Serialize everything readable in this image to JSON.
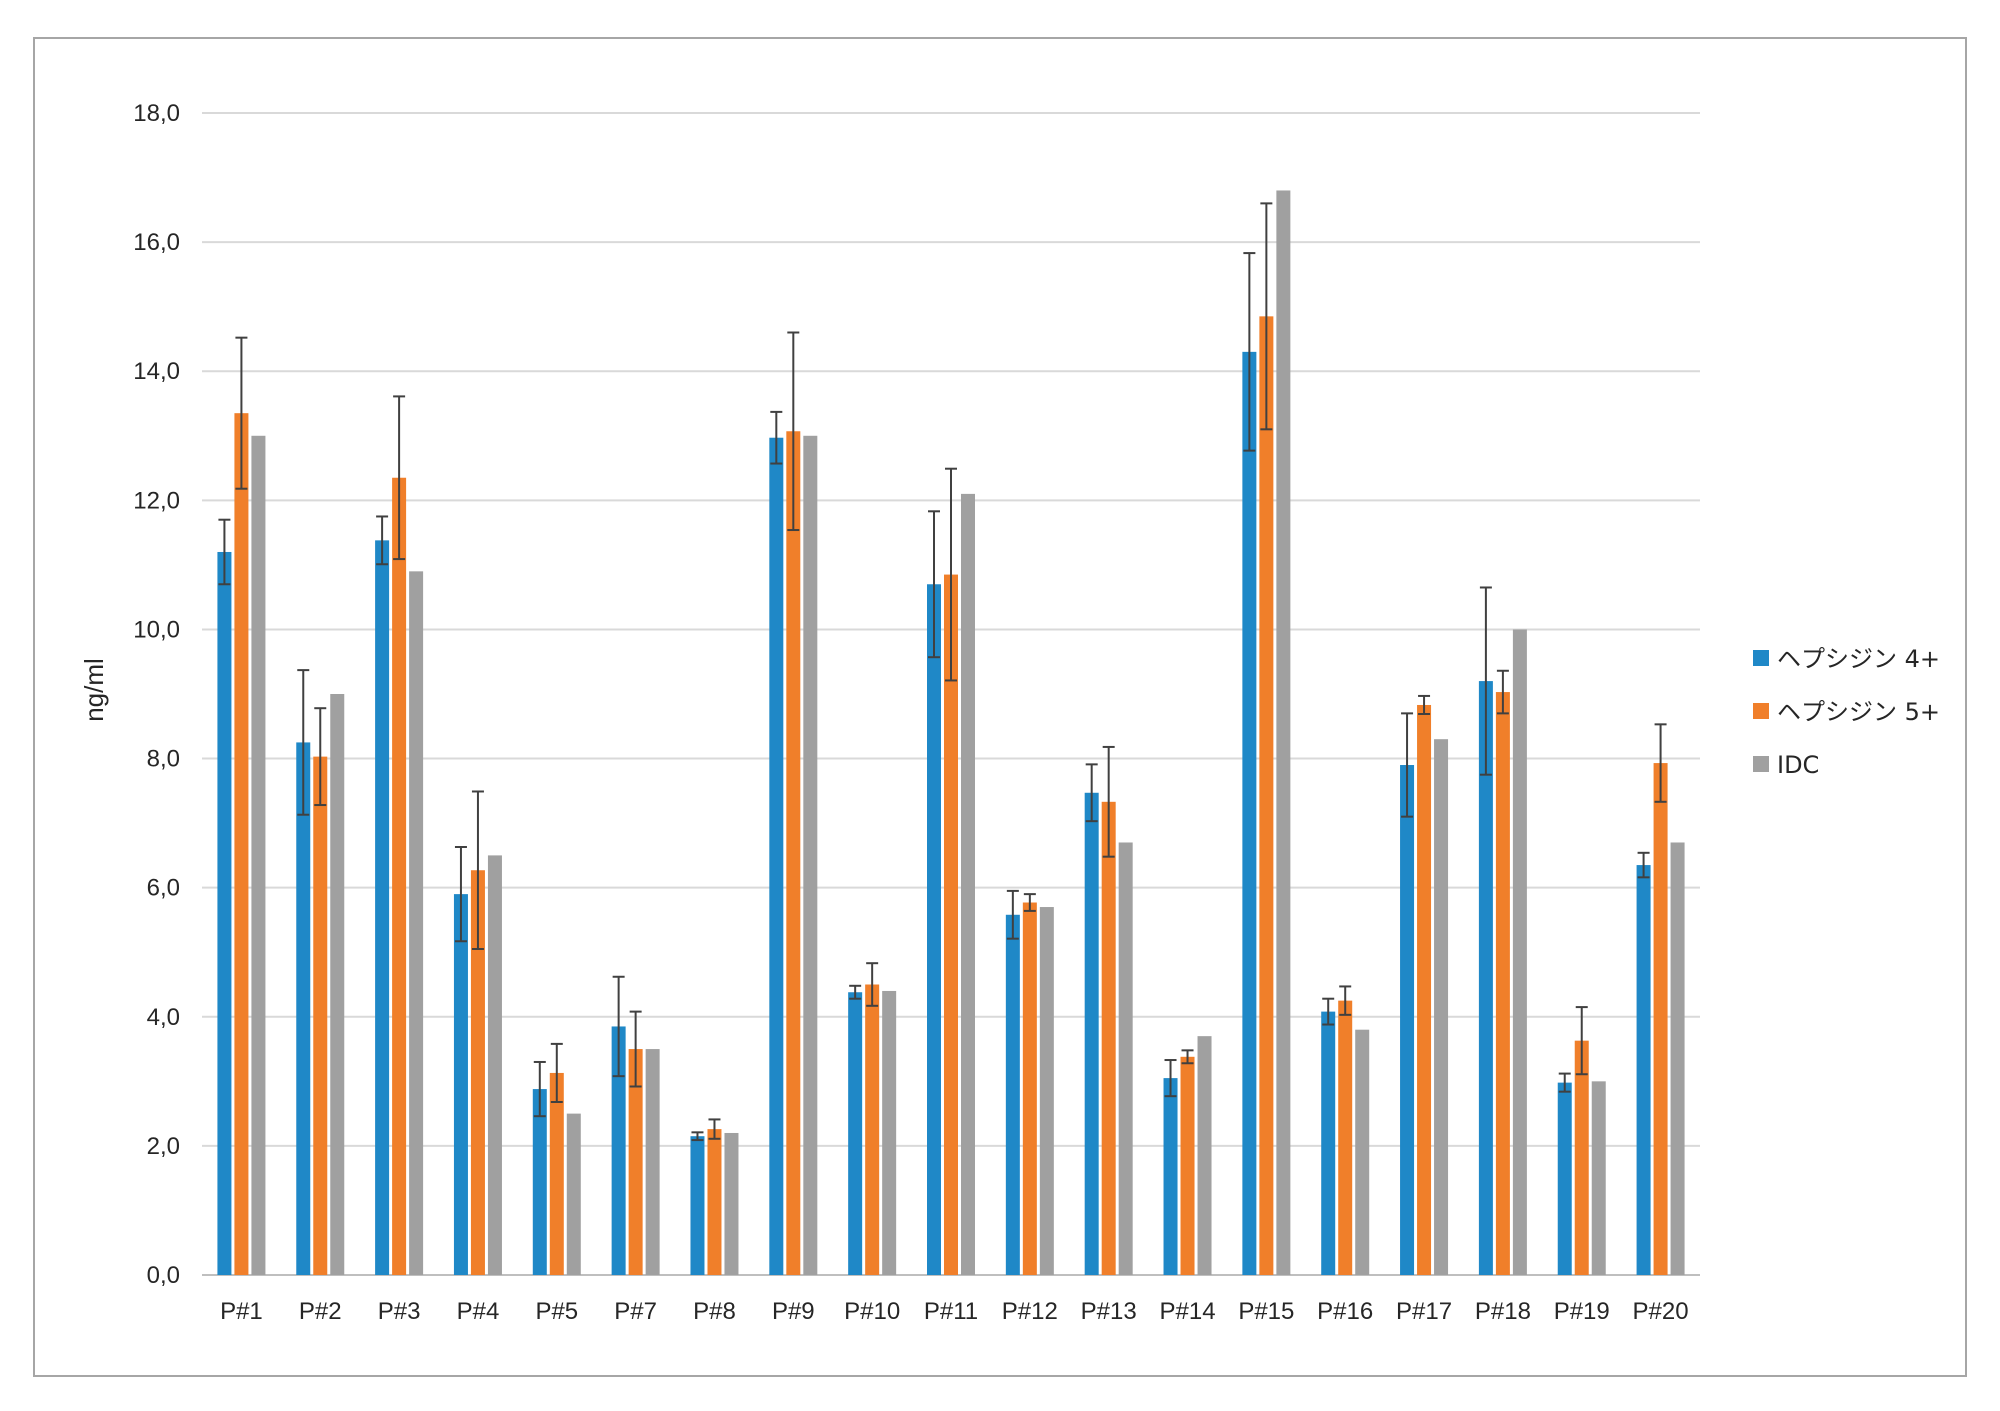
{
  "chart_data": {
    "type": "bar",
    "title": "",
    "xlabel": "",
    "ylabel": "ng/ml",
    "ylim": [
      0,
      18
    ],
    "yticks": [
      0,
      2,
      4,
      6,
      8,
      10,
      12,
      14,
      16,
      18
    ],
    "ytick_labels": [
      "0,0",
      "2,0",
      "4,0",
      "6,0",
      "8,0",
      "10,0",
      "12,0",
      "14,0",
      "16,0",
      "18,0"
    ],
    "grid": true,
    "legend_position": "right",
    "categories": [
      "P#1",
      "P#2",
      "P#3",
      "P#4",
      "P#5",
      "P#7",
      "P#8",
      "P#9",
      "P#10",
      "P#11",
      "P#12",
      "P#13",
      "P#14",
      "P#15",
      "P#16",
      "P#17",
      "P#18",
      "P#19",
      "P#20"
    ],
    "series": [
      {
        "name": "ヘプシジン 4+",
        "color": "#1f88c7",
        "values": [
          11.2,
          8.25,
          11.38,
          5.9,
          2.88,
          3.85,
          2.15,
          12.97,
          4.38,
          10.7,
          5.58,
          7.47,
          3.05,
          14.3,
          4.08,
          7.9,
          9.2,
          2.98,
          6.35
        ],
        "error": [
          0.5,
          1.12,
          0.37,
          0.73,
          0.42,
          0.77,
          0.06,
          0.4,
          0.1,
          1.13,
          0.37,
          0.44,
          0.28,
          1.53,
          0.2,
          0.8,
          1.45,
          0.14,
          0.19
        ]
      },
      {
        "name": "ヘプシジン 5+",
        "color": "#f07f2a",
        "values": [
          13.35,
          8.03,
          12.35,
          6.27,
          3.13,
          3.5,
          2.26,
          13.07,
          4.5,
          10.85,
          5.77,
          7.33,
          3.38,
          14.85,
          4.25,
          8.83,
          9.03,
          3.63,
          7.93
        ],
        "error": [
          1.17,
          0.75,
          1.26,
          1.22,
          0.45,
          0.58,
          0.15,
          1.53,
          0.33,
          1.64,
          0.13,
          0.85,
          0.1,
          1.75,
          0.22,
          0.14,
          0.33,
          0.52,
          0.6
        ]
      },
      {
        "name": "IDC",
        "color": "#a0a0a0",
        "values": [
          13.0,
          9.0,
          10.9,
          6.5,
          2.5,
          3.5,
          2.2,
          13.0,
          4.4,
          12.1,
          5.7,
          6.7,
          3.7,
          16.8,
          3.8,
          8.3,
          10.0,
          3.0,
          6.7
        ],
        "error": null
      }
    ]
  }
}
